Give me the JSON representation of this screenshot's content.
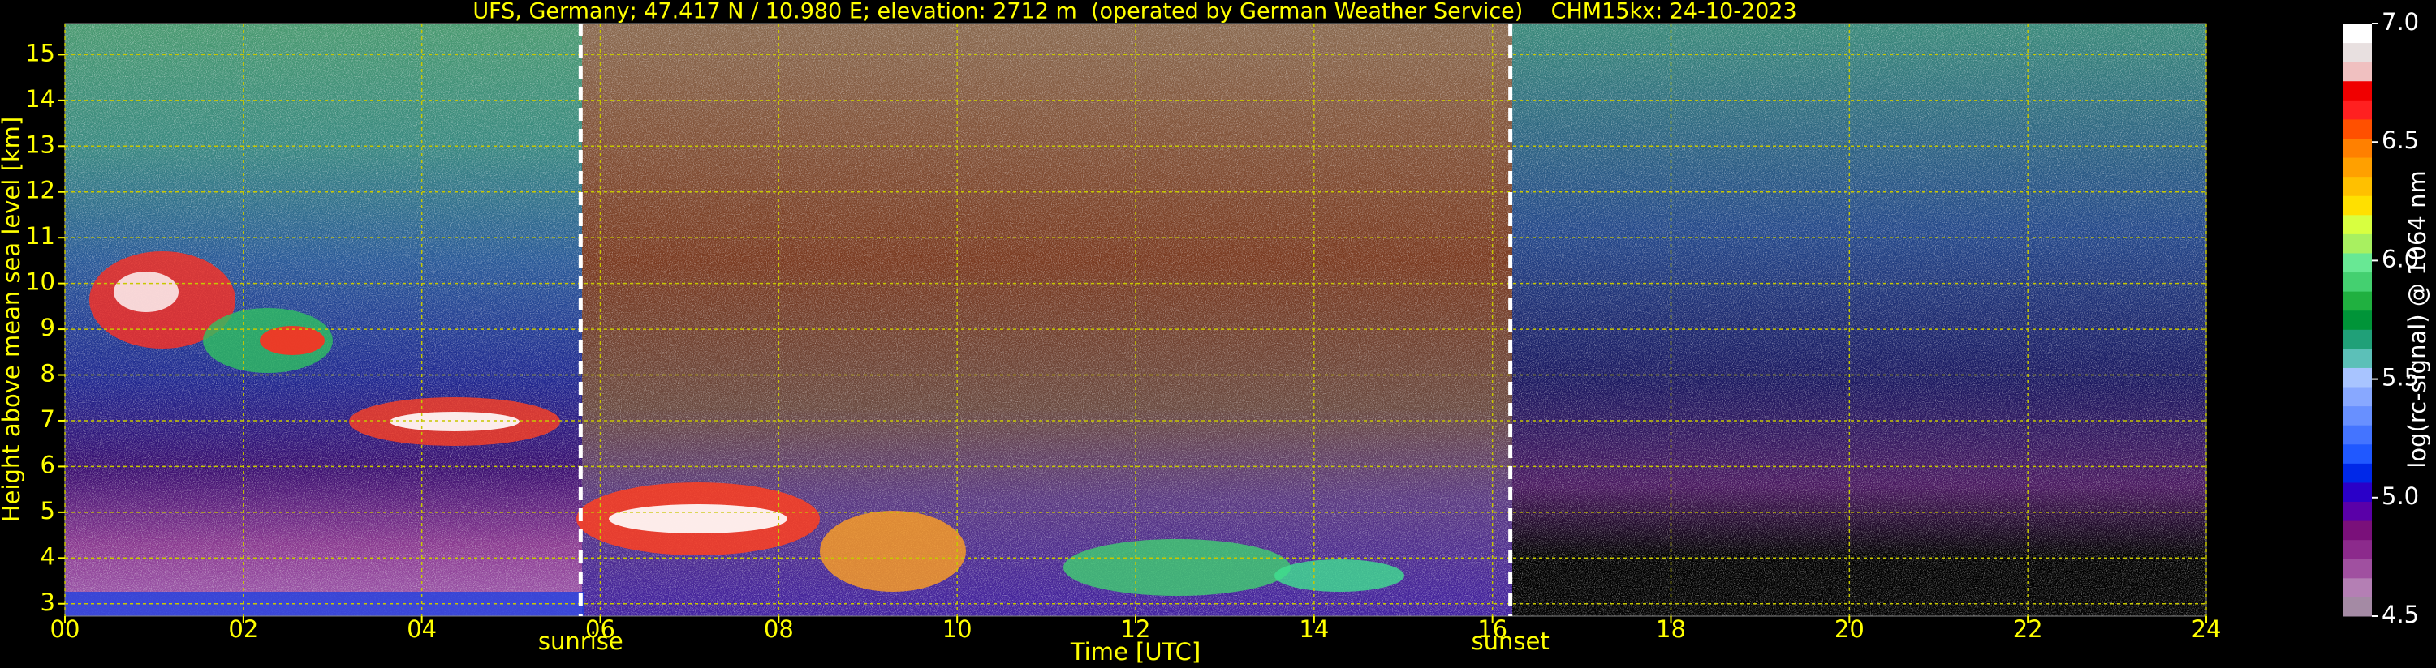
{
  "chart_data": {
    "type": "heatmap",
    "title": "UFS, Germany; 47.417 N / 10.980 E; elevation: 2712 m  (operated by German Weather Service)    CHM15kx: 24-10-2023",
    "xlabel": "Time [UTC]",
    "ylabel": "Height above mean sea level [km]",
    "xlim": [
      0,
      24
    ],
    "xticks": [
      {
        "value": 0,
        "label": "00"
      },
      {
        "value": 2,
        "label": "02"
      },
      {
        "value": 4,
        "label": "04"
      },
      {
        "value": 6,
        "label": "06"
      },
      {
        "value": 8,
        "label": "08"
      },
      10,
      12,
      14,
      16,
      18,
      20,
      22,
      24
    ],
    "ylim": [
      2.73,
      15.68
    ],
    "yticks": [
      3,
      4,
      5,
      6,
      7,
      8,
      9,
      10,
      11,
      12,
      13,
      14,
      15
    ],
    "grid": true,
    "annotations": [
      {
        "text": "sunrise",
        "x": 5.78
      },
      {
        "text": "sunset",
        "x": 16.2
      }
    ],
    "colorbar": {
      "label": "log(rc-signal) @ 1064 nm",
      "lim": [
        4.5,
        7.0
      ],
      "ticks": [
        4.5,
        {
          "value": 5,
          "label": "5.0"
        },
        5.5,
        {
          "value": 6,
          "label": "6.0"
        },
        6.5,
        {
          "value": 7,
          "label": "7.0"
        }
      ],
      "colors": [
        "#a48aa4",
        "#b47fb4",
        "#a050a0",
        "#8c2a8c",
        "#7a107a",
        "#5a00a8",
        "#2a00c8",
        "#0028e8",
        "#2058ff",
        "#4474ff",
        "#6890ff",
        "#88a8ff",
        "#a8c4ff",
        "#5cc0b8",
        "#20a078",
        "#009438",
        "#20b040",
        "#44d070",
        "#68e894",
        "#a8f060",
        "#d8ff40",
        "#ffe000",
        "#ffc000",
        "#ffa000",
        "#ff8000",
        "#ff5000",
        "#ff2020",
        "#f00000",
        "#f0c0c0",
        "#e8e0e0",
        "#ffffff"
      ]
    }
  }
}
